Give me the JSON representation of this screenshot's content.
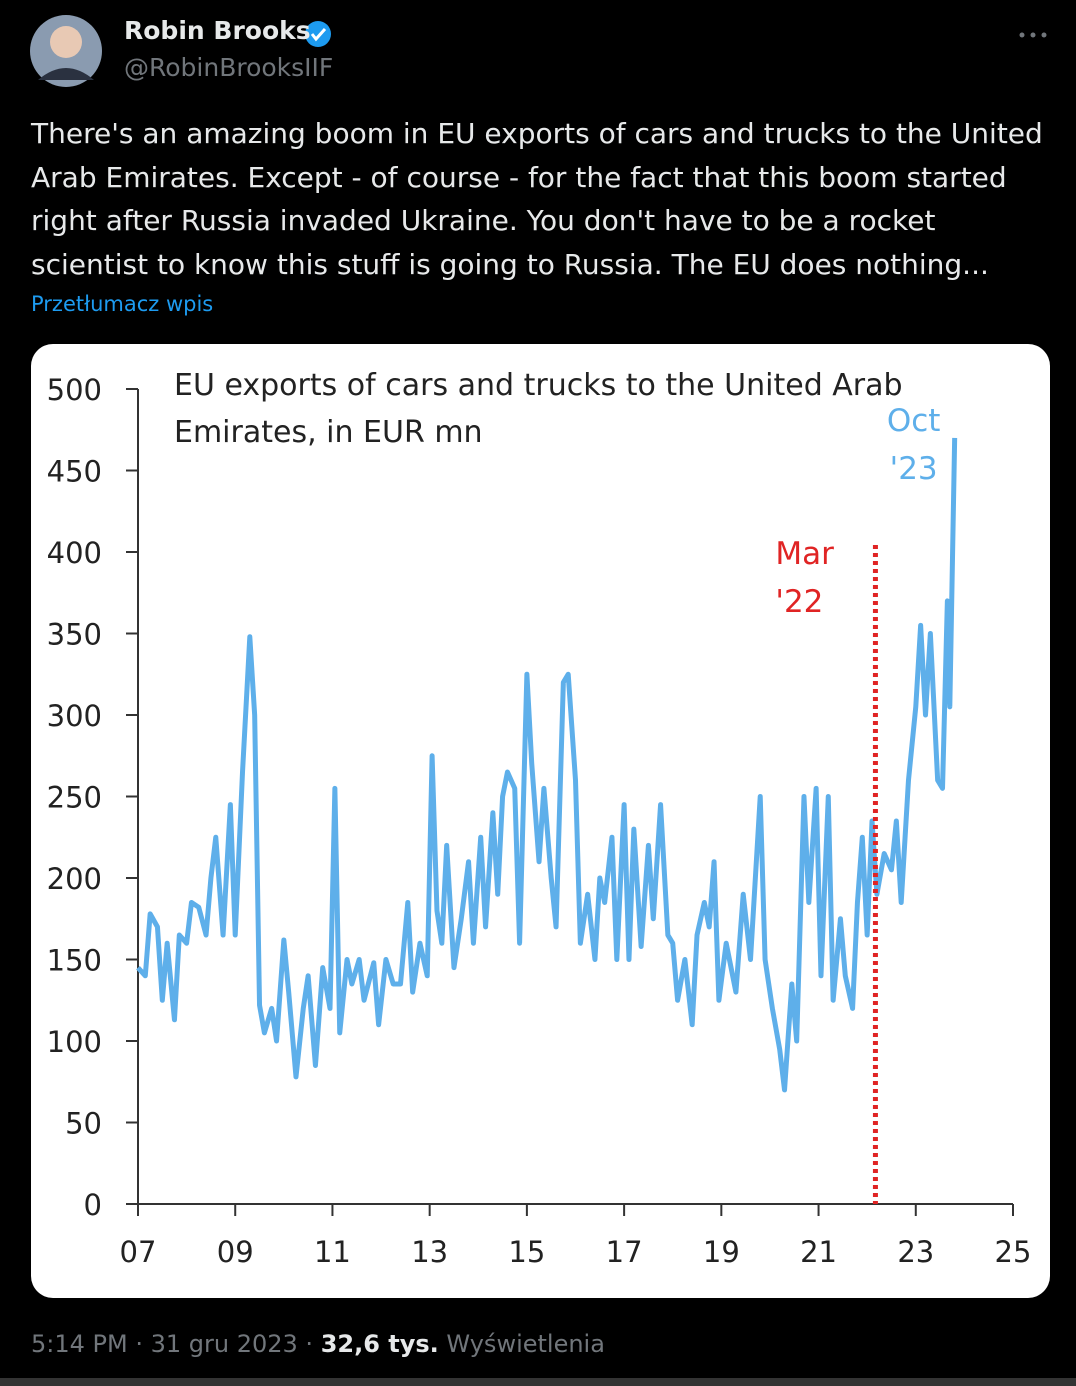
{
  "author": {
    "name": "Robin Brooks",
    "handle": "@RobinBrooksIIF"
  },
  "text": "There's an amazing boom in EU exports of cars and trucks to the United Arab Emirates. Except - of course - for the fact that this boom started right after Russia invaded Ukraine. You don't have to be a rocket scientist to know this stuff is going to Russia. The EU does nothing...",
  "translate": "Przetłumacz wpis",
  "footer": {
    "time_date": "5:14 PM · 31 gru 2023 ·",
    "views": "32,6 tys.",
    "views_label": "Wyświetlenia"
  },
  "chart_data": {
    "type": "line",
    "title": "EU exports of cars and trucks to the United Arab Emirates, in EUR mn",
    "x": [
      2007.0,
      2007.15,
      2007.25,
      2007.4,
      2007.5,
      2007.6,
      2007.75,
      2007.85,
      2008.0,
      2008.1,
      2008.25,
      2008.4,
      2008.5,
      2008.6,
      2008.75,
      2008.9,
      2009.0,
      2009.15,
      2009.3,
      2009.4,
      2009.5,
      2009.6,
      2009.75,
      2009.85,
      2010.0,
      2010.1,
      2010.25,
      2010.4,
      2010.5,
      2010.65,
      2010.8,
      2010.95,
      2011.05,
      2011.15,
      2011.3,
      2011.4,
      2011.55,
      2011.65,
      2011.85,
      2011.95,
      2012.1,
      2012.25,
      2012.4,
      2012.55,
      2012.65,
      2012.8,
      2012.95,
      2013.05,
      2013.15,
      2013.25,
      2013.35,
      2013.5,
      2013.65,
      2013.8,
      2013.9,
      2014.05,
      2014.15,
      2014.3,
      2014.4,
      2014.5,
      2014.6,
      2014.75,
      2014.85,
      2015.0,
      2015.1,
      2015.25,
      2015.35,
      2015.5,
      2015.6,
      2015.75,
      2015.85,
      2016.0,
      2016.1,
      2016.25,
      2016.4,
      2016.5,
      2016.6,
      2016.75,
      2016.85,
      2017.0,
      2017.1,
      2017.2,
      2017.35,
      2017.5,
      2017.6,
      2017.75,
      2017.9,
      2018.0,
      2018.1,
      2018.25,
      2018.4,
      2018.5,
      2018.65,
      2018.75,
      2018.85,
      2018.95,
      2019.1,
      2019.3,
      2019.45,
      2019.6,
      2019.8,
      2019.9,
      2020.05,
      2020.2,
      2020.3,
      2020.45,
      2020.55,
      2020.7,
      2020.8,
      2020.95,
      2021.05,
      2021.2,
      2021.3,
      2021.45,
      2021.55,
      2021.7,
      2021.8,
      2021.9,
      2022.0,
      2022.1,
      2022.2,
      2022.35,
      2022.5,
      2022.6,
      2022.7,
      2022.85,
      2023.0,
      2023.1,
      2023.2,
      2023.3,
      2023.45,
      2023.55,
      2023.65,
      2023.7,
      2023.8
    ],
    "series": [
      {
        "name": "EU exports",
        "color": "#5eafea",
        "values": [
          145,
          140,
          178,
          170,
          125,
          160,
          113,
          165,
          160,
          185,
          182,
          165,
          200,
          225,
          165,
          245,
          165,
          265,
          348,
          300,
          122,
          105,
          120,
          100,
          162,
          130,
          78,
          120,
          140,
          85,
          145,
          120,
          255,
          105,
          150,
          135,
          150,
          125,
          148,
          110,
          150,
          135,
          135,
          185,
          130,
          160,
          140,
          275,
          180,
          160,
          220,
          145,
          175,
          210,
          160,
          225,
          170,
          240,
          190,
          250,
          265,
          255,
          160,
          325,
          270,
          210,
          255,
          200,
          170,
          320,
          325,
          260,
          160,
          190,
          150,
          200,
          185,
          225,
          150,
          245,
          150,
          230,
          158,
          220,
          175,
          245,
          165,
          160,
          125,
          150,
          110,
          165,
          185,
          170,
          210,
          125,
          160,
          130,
          190,
          150,
          250,
          150,
          120,
          95,
          70,
          135,
          100,
          250,
          185,
          255,
          140,
          250,
          125,
          175,
          140,
          120,
          185,
          225,
          165,
          235,
          190,
          215,
          205,
          235,
          185,
          260,
          305,
          355,
          300,
          350,
          260,
          255,
          370,
          305,
          470
        ]
      }
    ],
    "xlim": [
      2007,
      2025
    ],
    "xticks": [
      {
        "value": 2007,
        "label": "07"
      },
      {
        "value": 2009,
        "label": "09"
      },
      {
        "value": 2011,
        "label": "11"
      },
      {
        "value": 2013,
        "label": "13"
      },
      {
        "value": 2015,
        "label": "15"
      },
      {
        "value": 2017,
        "label": "17"
      },
      {
        "value": 2019,
        "label": "19"
      },
      {
        "value": 2021,
        "label": "21"
      },
      {
        "value": 2023,
        "label": "23"
      },
      {
        "value": 2025,
        "label": "25"
      }
    ],
    "ylim": [
      0,
      500
    ],
    "yticks": [
      0,
      50,
      100,
      150,
      200,
      250,
      300,
      350,
      400,
      450,
      500
    ],
    "annotations": [
      {
        "text": "Mar '22",
        "x": 2022.17,
        "color": "#e02424"
      },
      {
        "text": "Oct '23",
        "x": 2023.8,
        "color": "#5eafea"
      }
    ]
  }
}
